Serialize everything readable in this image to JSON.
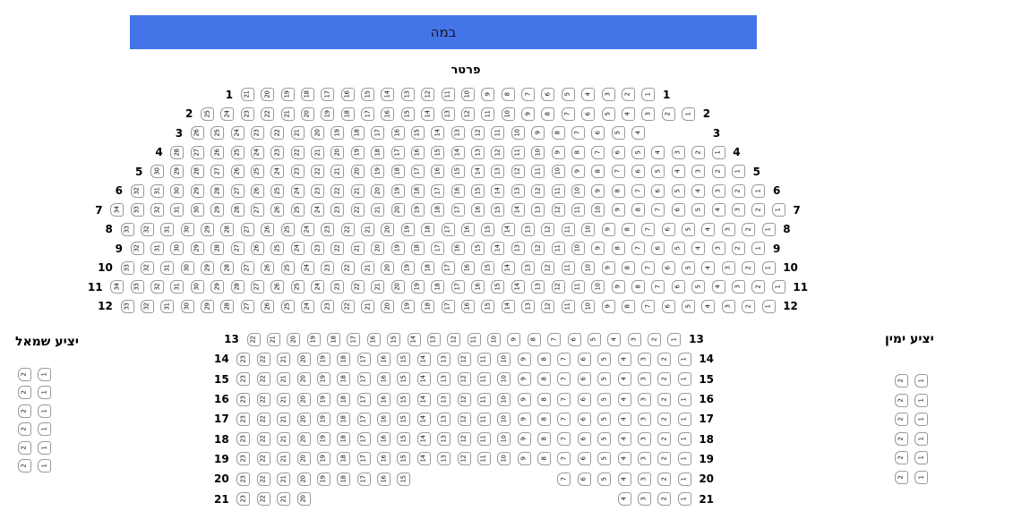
{
  "stage": {
    "label": "במה"
  },
  "colors": {
    "stage_bg": "#4573E8",
    "seat_border": "#9a9a9a",
    "stage_text": "#15151f"
  },
  "parterre": {
    "label": "פרטר",
    "upper_rows": [
      {
        "row": "1",
        "seats": [
          21,
          20,
          19,
          18,
          17,
          16,
          15,
          14,
          13,
          12,
          11,
          10,
          9,
          8,
          7,
          6,
          5,
          4,
          3,
          2,
          1
        ]
      },
      {
        "row": "2",
        "seats": [
          25,
          24,
          23,
          22,
          21,
          20,
          19,
          18,
          17,
          16,
          15,
          14,
          13,
          12,
          11,
          10,
          9,
          8,
          7,
          6,
          5,
          4,
          3,
          2,
          1
        ]
      },
      {
        "row": "3",
        "seats": [
          26,
          25,
          24,
          23,
          22,
          21,
          20,
          19,
          18,
          17,
          16,
          15,
          14,
          13,
          12,
          11,
          10,
          9,
          8,
          7,
          6,
          5,
          4,
          null,
          null,
          null
        ]
      },
      {
        "row": "4",
        "seats": [
          28,
          27,
          26,
          25,
          24,
          23,
          22,
          21,
          20,
          19,
          18,
          17,
          16,
          15,
          14,
          13,
          12,
          11,
          10,
          9,
          8,
          7,
          6,
          5,
          4,
          3,
          2,
          1
        ]
      },
      {
        "row": "5",
        "seats": [
          30,
          29,
          28,
          27,
          26,
          25,
          24,
          23,
          22,
          21,
          20,
          19,
          18,
          17,
          16,
          15,
          14,
          13,
          12,
          11,
          10,
          9,
          8,
          7,
          6,
          5,
          4,
          3,
          2,
          1
        ]
      },
      {
        "row": "6",
        "seats": [
          32,
          31,
          30,
          29,
          28,
          27,
          26,
          25,
          24,
          23,
          22,
          21,
          20,
          19,
          18,
          17,
          16,
          15,
          14,
          13,
          12,
          11,
          10,
          9,
          8,
          7,
          6,
          5,
          4,
          3,
          2,
          1
        ]
      },
      {
        "row": "7",
        "seats": [
          34,
          33,
          32,
          31,
          30,
          29,
          28,
          27,
          26,
          25,
          24,
          23,
          22,
          21,
          20,
          19,
          18,
          17,
          16,
          15,
          14,
          13,
          12,
          11,
          10,
          9,
          8,
          7,
          6,
          5,
          4,
          3,
          2,
          1
        ]
      },
      {
        "row": "8",
        "seats": [
          33,
          32,
          31,
          30,
          29,
          28,
          27,
          26,
          25,
          24,
          23,
          22,
          21,
          20,
          19,
          18,
          17,
          16,
          15,
          14,
          13,
          12,
          11,
          10,
          9,
          8,
          7,
          6,
          5,
          4,
          3,
          2,
          1
        ]
      },
      {
        "row": "9",
        "seats": [
          32,
          31,
          30,
          29,
          28,
          27,
          26,
          25,
          24,
          23,
          22,
          21,
          20,
          19,
          18,
          17,
          16,
          15,
          14,
          13,
          12,
          11,
          10,
          9,
          8,
          7,
          6,
          5,
          4,
          3,
          2,
          1
        ]
      },
      {
        "row": "10",
        "seats": [
          33,
          32,
          31,
          30,
          29,
          28,
          27,
          26,
          25,
          24,
          23,
          22,
          21,
          20,
          19,
          18,
          17,
          16,
          15,
          14,
          13,
          12,
          11,
          10,
          9,
          8,
          7,
          6,
          5,
          4,
          3,
          2,
          1
        ]
      },
      {
        "row": "11",
        "seats": [
          34,
          33,
          32,
          31,
          30,
          29,
          28,
          27,
          26,
          25,
          24,
          23,
          22,
          21,
          20,
          19,
          18,
          17,
          16,
          15,
          14,
          13,
          12,
          11,
          10,
          9,
          8,
          7,
          6,
          5,
          4,
          3,
          2,
          1
        ]
      },
      {
        "row": "12",
        "seats": [
          33,
          32,
          31,
          30,
          29,
          28,
          27,
          26,
          25,
          24,
          23,
          22,
          21,
          20,
          19,
          18,
          17,
          16,
          15,
          14,
          13,
          12,
          11,
          10,
          9,
          8,
          7,
          6,
          5,
          4,
          3,
          2,
          1
        ]
      }
    ],
    "lower_rows": [
      {
        "row": "13",
        "seats": [
          22,
          21,
          20,
          19,
          18,
          17,
          16,
          15,
          14,
          13,
          12,
          11,
          10,
          9,
          8,
          7,
          6,
          5,
          4,
          3,
          2,
          1
        ]
      },
      {
        "row": "14",
        "seats": [
          23,
          22,
          21,
          20,
          19,
          18,
          17,
          16,
          15,
          14,
          13,
          12,
          11,
          10,
          9,
          8,
          7,
          6,
          5,
          4,
          3,
          2,
          1
        ]
      },
      {
        "row": "15",
        "seats": [
          23,
          22,
          21,
          20,
          19,
          18,
          17,
          16,
          15,
          14,
          13,
          12,
          11,
          10,
          9,
          8,
          7,
          6,
          5,
          4,
          3,
          2,
          1
        ]
      },
      {
        "row": "16",
        "seats": [
          23,
          22,
          21,
          20,
          19,
          18,
          17,
          16,
          15,
          14,
          13,
          12,
          11,
          10,
          9,
          8,
          7,
          6,
          5,
          4,
          3,
          2,
          1
        ]
      },
      {
        "row": "17",
        "seats": [
          23,
          22,
          21,
          20,
          19,
          18,
          17,
          16,
          15,
          14,
          13,
          12,
          11,
          10,
          9,
          8,
          7,
          6,
          5,
          4,
          3,
          2,
          1
        ]
      },
      {
        "row": "18",
        "seats": [
          23,
          22,
          21,
          20,
          19,
          18,
          17,
          16,
          15,
          14,
          13,
          12,
          11,
          10,
          9,
          8,
          7,
          6,
          5,
          4,
          3,
          2,
          1
        ]
      },
      {
        "row": "19",
        "seats": [
          23,
          22,
          21,
          20,
          19,
          18,
          17,
          16,
          15,
          14,
          13,
          12,
          11,
          10,
          9,
          8,
          7,
          6,
          5,
          4,
          3,
          2,
          1
        ]
      },
      {
        "row": "20",
        "seats": [
          23,
          22,
          21,
          20,
          19,
          18,
          17,
          16,
          15,
          null,
          null,
          null,
          null,
          null,
          null,
          null,
          7,
          6,
          5,
          4,
          3,
          2,
          1
        ]
      },
      {
        "row": "21",
        "seats": [
          23,
          22,
          21,
          20,
          null,
          null,
          null,
          null,
          null,
          null,
          null,
          null,
          null,
          null,
          null,
          null,
          null,
          null,
          null,
          4,
          3,
          2,
          1
        ]
      }
    ]
  },
  "left_balcony": {
    "label": "יציע שמאל",
    "rows": [
      {
        "seats": [
          2,
          1
        ]
      },
      {
        "seats": [
          2,
          1
        ]
      },
      {
        "seats": [
          2,
          1
        ]
      },
      {
        "seats": [
          2,
          1
        ]
      },
      {
        "seats": [
          2,
          1
        ]
      },
      {
        "seats": [
          2,
          1
        ]
      }
    ]
  },
  "right_balcony": {
    "label": "יציע ימין",
    "rows": [
      {
        "seats": [
          2,
          1
        ]
      },
      {
        "seats": [
          2,
          1
        ]
      },
      {
        "seats": [
          2,
          1
        ]
      },
      {
        "seats": [
          2,
          1
        ]
      },
      {
        "seats": [
          2,
          1
        ]
      },
      {
        "seats": [
          2,
          1
        ]
      }
    ]
  }
}
